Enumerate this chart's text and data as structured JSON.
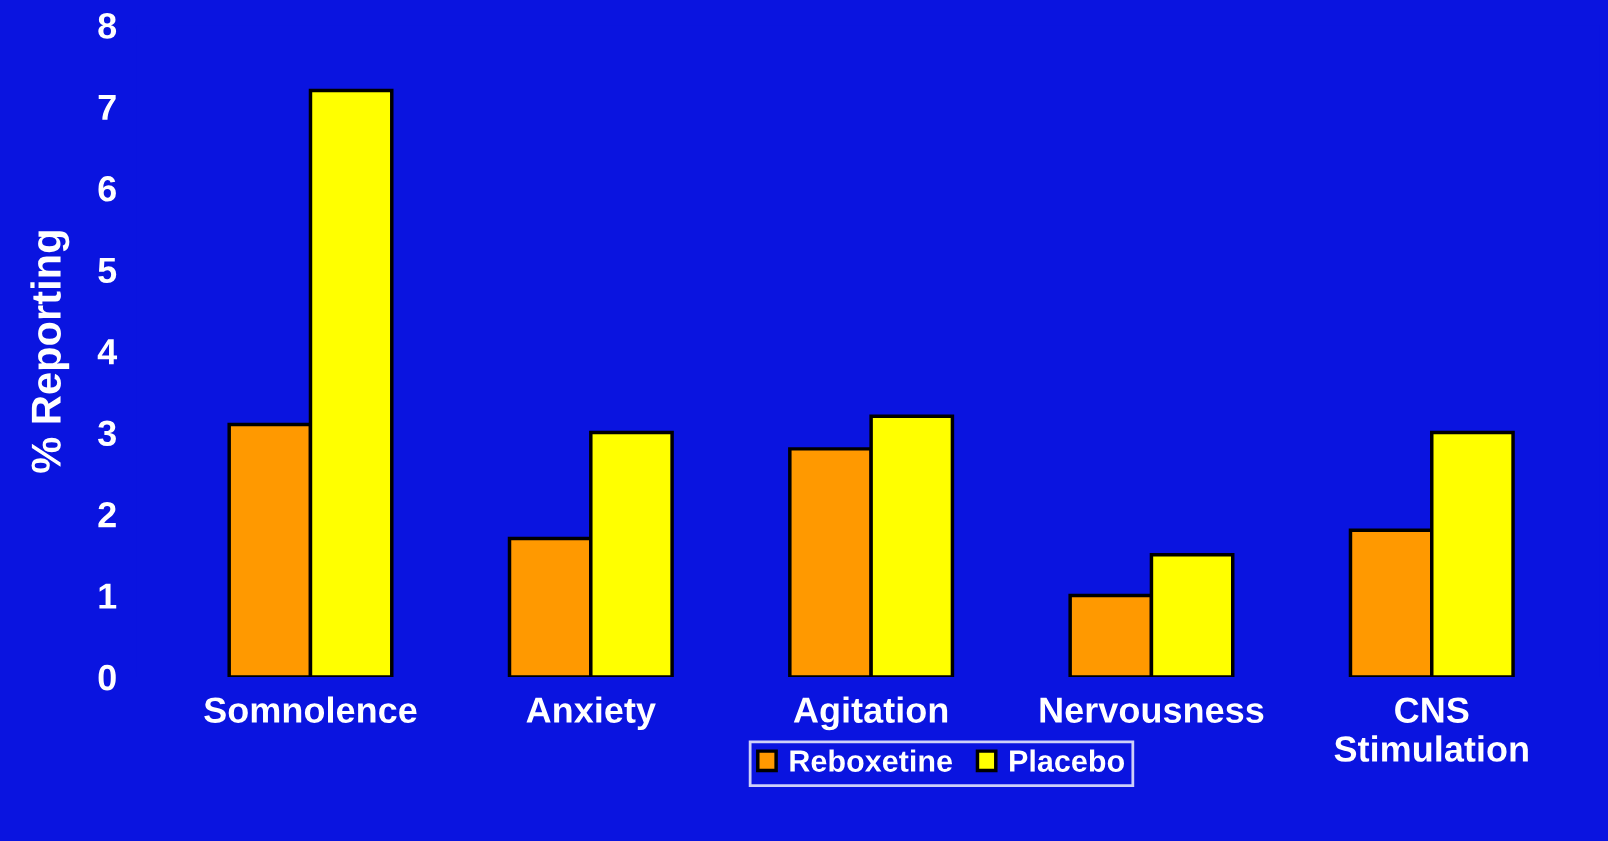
{
  "chart_data": {
    "type": "bar",
    "ylabel": "% Reporting",
    "categories": [
      "Somnolence",
      "Anxiety",
      "Agitation",
      "Nervousness",
      "CNS\nStimulation"
    ],
    "series": [
      {
        "name": "Reboxetine",
        "color": "#ff9900",
        "values": [
          3.1,
          1.7,
          2.8,
          1.0,
          1.8
        ]
      },
      {
        "name": "Placebo",
        "color": "#ffff00",
        "values": [
          7.2,
          3.0,
          3.2,
          1.5,
          3.0
        ]
      }
    ],
    "ylim": [
      0,
      8
    ],
    "yticks": [
      0,
      1,
      2,
      3,
      4,
      5,
      6,
      7,
      8
    ],
    "grid": false,
    "legend": "bottom"
  }
}
